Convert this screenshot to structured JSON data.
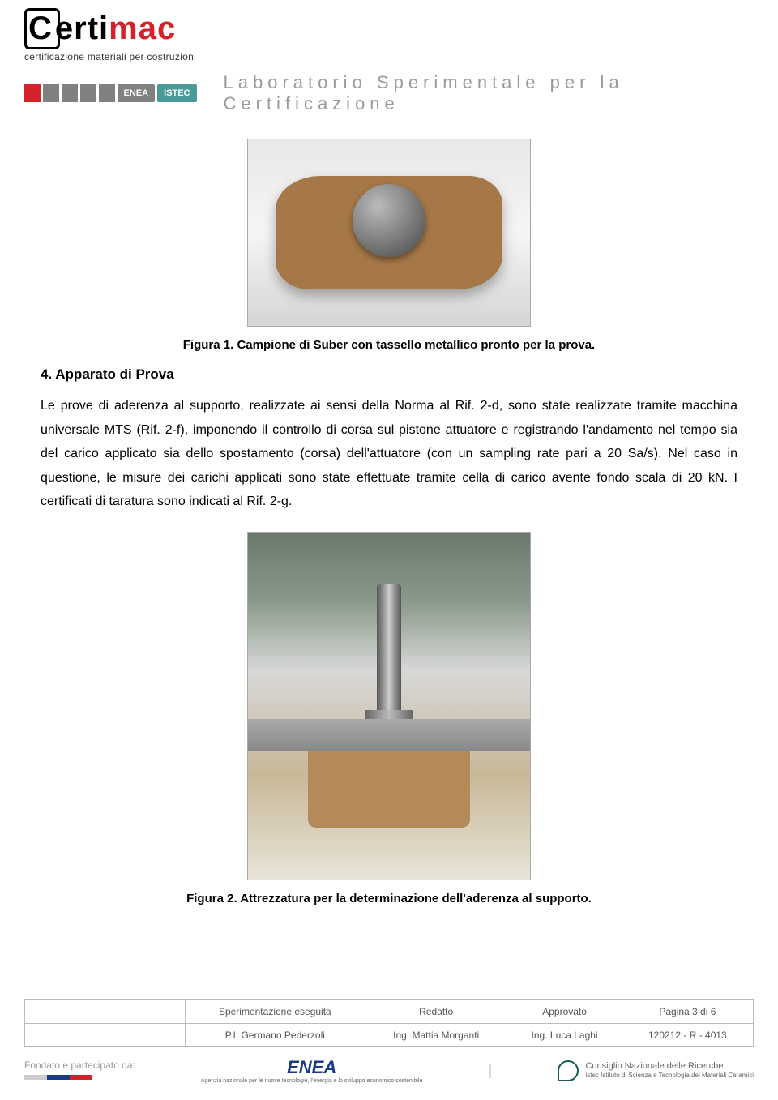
{
  "header": {
    "logo_black": "erti",
    "logo_red": "mac",
    "logo_tagline": "certificazione materiali per costruzioni",
    "stripe_colors": [
      "#d2232a",
      "#808080",
      "#808080",
      "#808080",
      "#808080"
    ],
    "badge1": "ENEA",
    "badge1_bg": "#808080",
    "badge2": "ISTEC",
    "badge2_bg": "#4a9a9a",
    "lab_title": "Laboratorio Sperimentale per la Certificazione"
  },
  "figure1_caption": "Figura 1. Campione di Suber con tassello metallico pronto per la prova.",
  "section4_title": "4.   Apparato di Prova",
  "paragraph": "Le prove di aderenza al supporto, realizzate ai sensi della Norma al Rif. 2-d, sono state realizzate tramite macchina universale MTS (Rif. 2-f), imponendo il controllo di corsa sul pistone attuatore e registrando l'andamento nel tempo sia del carico applicato sia dello spostamento (corsa) dell'attuatore (con un sampling rate pari a 20 Sa/s). Nel caso in questione, le misure dei carichi applicati sono state effettuate tramite cella di carico avente fondo scala di 20 kN. I certificati di taratura sono indicati al Rif. 2-g.",
  "figure2_caption": "Figura 2. Attrezzatura per la determinazione dell'aderenza al supporto.",
  "footer": {
    "row1": [
      "",
      "Sperimentazione eseguita",
      "Redatto",
      "Approvato",
      "Pagina 3 di 6"
    ],
    "row2": [
      "",
      "P.I. Germano Pederzoli",
      "Ing. Mattia Morganti",
      "Ing. Luca Laghi",
      "120212 - R - 4013"
    ],
    "fondato": "Fondato e partecipato da:",
    "fondato_bar_colors": [
      "#cccccc",
      "#1a3a8a",
      "#d2232a"
    ],
    "enea": "ENEA",
    "enea_sub": "Agenzia nazionale per le nuove tecnologie,\nl'energia e lo sviluppo economico sostenibile",
    "cnr_line1": "Consiglio Nazionale delle Ricerche",
    "cnr_line2": "istec  Istituto di Scienza e Tecnologia dei Materiali Ceramici"
  }
}
